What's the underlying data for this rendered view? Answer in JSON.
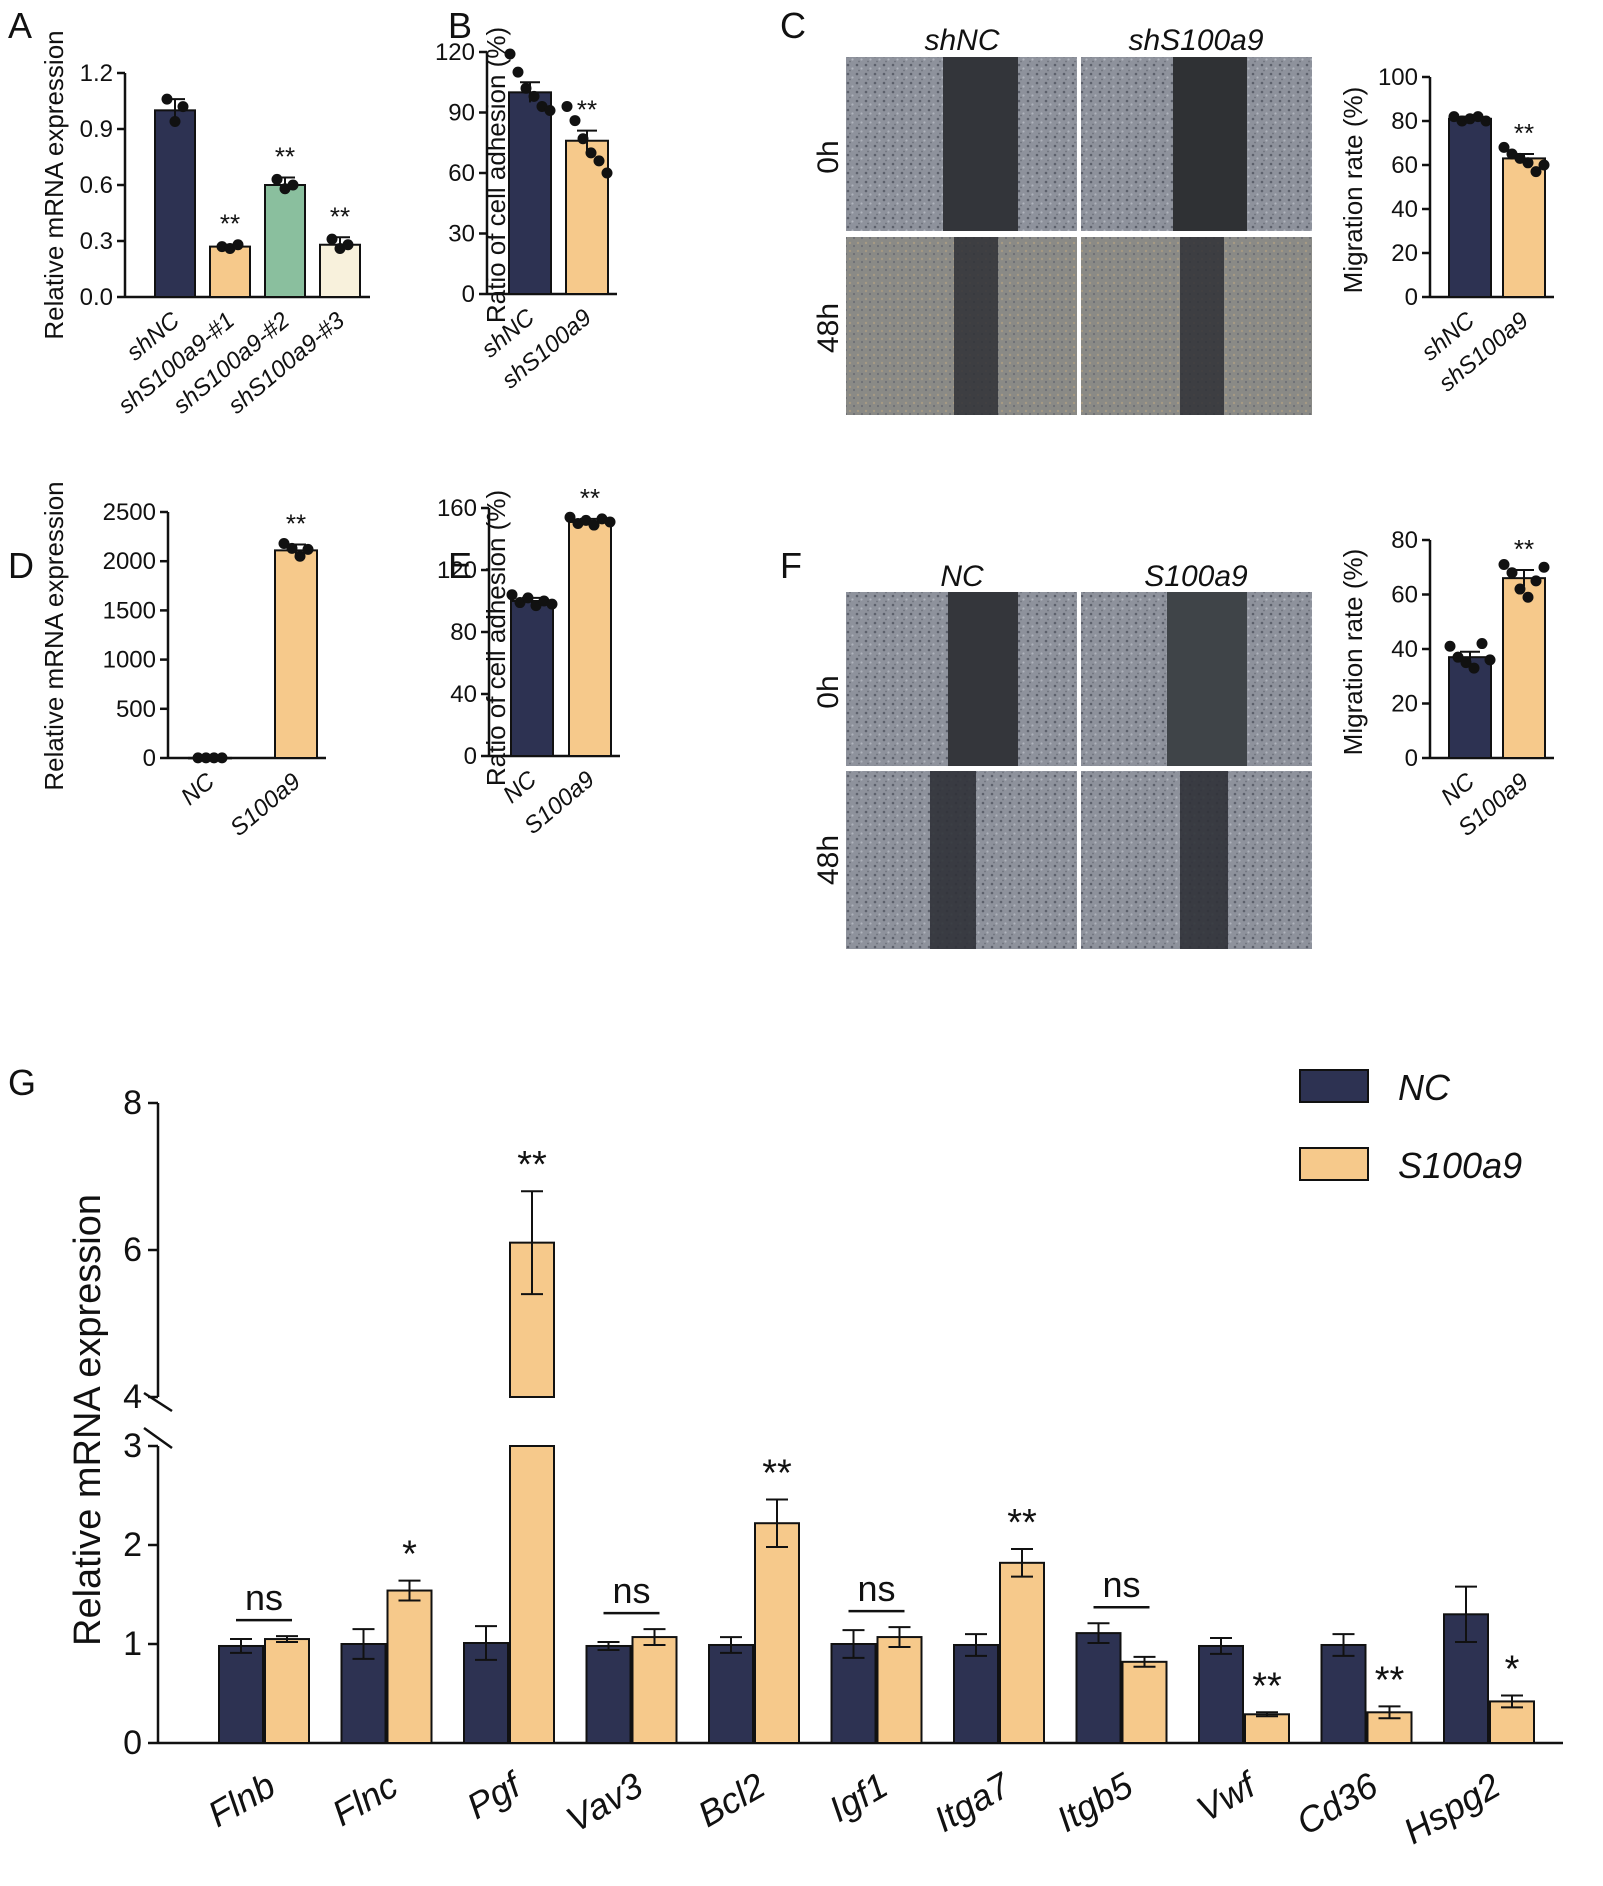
{
  "colors": {
    "nc": "#2d3252",
    "s100a9": "#f6c98b",
    "sh2": "#8abf9e",
    "sh3": "#f8f1dc",
    "axis": "#111111"
  },
  "chart_data": [
    {
      "id": "A",
      "panel_label": "A",
      "type": "bar",
      "ylabel": "Relative mRNA expression",
      "ylim": [
        0,
        1.2
      ],
      "yticks": [
        "0.0",
        "0.3",
        "0.6",
        "0.9",
        "1.2"
      ],
      "ytick_values": [
        0,
        0.3,
        0.6,
        0.9,
        1.2
      ],
      "categories": [
        "shNC",
        "shS100a9-#1",
        "shS100a9-#2",
        "shS100a9-#3"
      ],
      "values": [
        1.0,
        0.27,
        0.6,
        0.28
      ],
      "errors": [
        0.06,
        0.01,
        0.04,
        0.04
      ],
      "points": [
        [
          1.06,
          0.94,
          1.02
        ],
        [
          0.27,
          0.26,
          0.28
        ],
        [
          0.63,
          0.58,
          0.6
        ],
        [
          0.31,
          0.26,
          0.28
        ]
      ],
      "color_keys": [
        "nc",
        "s100a9",
        "sh2",
        "sh3"
      ],
      "annotations": [
        "",
        "**",
        "**",
        "**"
      ]
    },
    {
      "id": "B",
      "panel_label": "B",
      "type": "bar",
      "ylabel": "Ratio of cell adhesion (%)",
      "ylim": [
        0,
        120
      ],
      "yticks": [
        "0",
        "30",
        "60",
        "90",
        "120"
      ],
      "ytick_values": [
        0,
        30,
        60,
        90,
        120
      ],
      "categories": [
        "shNC",
        "shS100a9"
      ],
      "values": [
        100,
        76
      ],
      "errors": [
        5,
        5
      ],
      "points": [
        [
          119,
          110,
          102,
          98,
          93,
          91
        ],
        [
          93,
          86,
          77,
          70,
          66,
          60
        ]
      ],
      "color_keys": [
        "nc",
        "s100a9"
      ],
      "annotations": [
        "",
        "**"
      ]
    },
    {
      "id": "C",
      "panel_label": "C",
      "type": "bar",
      "ylabel": "Migration rate (%)",
      "ylim": [
        0,
        100
      ],
      "yticks": [
        "0",
        "20",
        "40",
        "60",
        "80",
        "100"
      ],
      "ytick_values": [
        0,
        20,
        40,
        60,
        80,
        100
      ],
      "categories": [
        "shNC",
        "shS100a9"
      ],
      "values": [
        81,
        63
      ],
      "errors": [
        1,
        2
      ],
      "points": [
        [
          82,
          80,
          81,
          82,
          80
        ],
        [
          68,
          65,
          63,
          61,
          57,
          60
        ]
      ],
      "color_keys": [
        "nc",
        "s100a9"
      ],
      "annotations": [
        "",
        "**"
      ]
    },
    {
      "id": "D",
      "panel_label": "D",
      "type": "bar",
      "ylabel": "Relative mRNA expression",
      "ylim": [
        0,
        2500
      ],
      "yticks": [
        "0",
        "500",
        "1000",
        "1500",
        "2000",
        "2500"
      ],
      "ytick_values": [
        0,
        500,
        1000,
        1500,
        2000,
        2500
      ],
      "categories": [
        "NC",
        "S100a9"
      ],
      "values": [
        1,
        2110
      ],
      "errors": [
        1,
        60
      ],
      "points": [
        [
          1,
          1,
          1,
          1
        ],
        [
          2180,
          2130,
          2050,
          2120
        ]
      ],
      "color_keys": [
        "nc",
        "s100a9"
      ],
      "annotations": [
        "",
        "**"
      ]
    },
    {
      "id": "E",
      "panel_label": "E",
      "type": "bar",
      "ylabel": "Ratio of cell adhesion (%)",
      "ylim": [
        0,
        160
      ],
      "yticks": [
        "0",
        "40",
        "80",
        "120",
        "160"
      ],
      "ytick_values": [
        0,
        40,
        80,
        120,
        160
      ],
      "categories": [
        "NC",
        "S100a9"
      ],
      "values": [
        100,
        151
      ],
      "errors": [
        2,
        2
      ],
      "points": [
        [
          104,
          99,
          102,
          97,
          100,
          98
        ],
        [
          154,
          150,
          152,
          149,
          153,
          151
        ]
      ],
      "color_keys": [
        "nc",
        "s100a9"
      ],
      "annotations": [
        "",
        "**"
      ]
    },
    {
      "id": "F",
      "panel_label": "F",
      "type": "bar",
      "ylabel": "Migration rate (%)",
      "ylim": [
        0,
        80
      ],
      "yticks": [
        "0",
        "20",
        "40",
        "60",
        "80"
      ],
      "ytick_values": [
        0,
        20,
        40,
        60,
        80
      ],
      "categories": [
        "NC",
        "S100a9"
      ],
      "values": [
        37,
        66
      ],
      "errors": [
        2,
        3
      ],
      "points": [
        [
          41,
          37,
          35,
          33,
          42,
          36
        ],
        [
          71,
          68,
          62,
          59,
          65,
          70
        ]
      ],
      "color_keys": [
        "nc",
        "s100a9"
      ],
      "annotations": [
        "",
        "**"
      ]
    },
    {
      "id": "G",
      "panel_label": "G",
      "type": "bar",
      "ylabel": "Relative mRNA expression",
      "axis_break": [
        3,
        4
      ],
      "yticks_lower": [
        "0",
        "1",
        "2",
        "3"
      ],
      "ytick_values_lower": [
        0,
        1,
        2,
        3
      ],
      "yticks_upper": [
        "4",
        "6",
        "8"
      ],
      "ytick_values_upper": [
        4,
        6,
        8
      ],
      "categories": [
        "Flnb",
        "Flnc",
        "Pgf",
        "Vav3",
        "Bcl2",
        "Igf1",
        "Itga7",
        "Itgb5",
        "Vwf",
        "Cd36",
        "Hspg2"
      ],
      "series": [
        {
          "name": "NC",
          "color_key": "nc",
          "values": [
            0.98,
            1.0,
            1.01,
            0.98,
            0.99,
            1.0,
            0.99,
            1.11,
            0.98,
            0.99,
            1.3
          ],
          "errors": [
            0.07,
            0.15,
            0.17,
            0.04,
            0.08,
            0.14,
            0.11,
            0.1,
            0.08,
            0.11,
            0.28
          ]
        },
        {
          "name": "S100a9",
          "color_key": "s100a9",
          "values": [
            1.05,
            1.54,
            6.1,
            1.07,
            2.22,
            1.07,
            1.82,
            0.82,
            0.29,
            0.31,
            0.42
          ],
          "errors": [
            0.03,
            0.1,
            0.7,
            0.08,
            0.24,
            0.1,
            0.14,
            0.05,
            0.02,
            0.06,
            0.06
          ]
        }
      ],
      "annotations": [
        "ns",
        "*",
        "**",
        "ns",
        "**",
        "ns",
        "**",
        "ns",
        "**",
        "**",
        "*"
      ],
      "legend": [
        "NC",
        "S100a9"
      ],
      "legend_position": "top-right"
    }
  ],
  "micrographs": [
    {
      "id": "C",
      "columns": [
        "shNC",
        "shS100a9"
      ],
      "rows": [
        "0h",
        "48h"
      ]
    },
    {
      "id": "F",
      "columns": [
        "NC",
        "S100a9"
      ],
      "rows": [
        "0h",
        "48h"
      ]
    }
  ]
}
